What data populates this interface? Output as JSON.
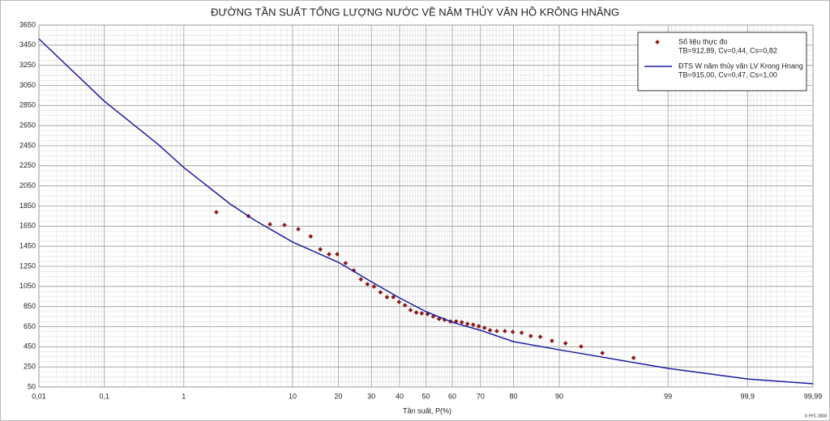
{
  "chart_data": {
    "type": "line",
    "title": "ĐƯỜNG TẦN SUẤT TỔNG LƯỢNG NƯỚC VỀ NĂM THỦY VĂN HỒ KRÔNG HNĂNG",
    "x_label": "Tần suất, P(%)",
    "footer": "© FFC 2008",
    "x_scale": "probability",
    "grid": true,
    "legend_position": "upper right",
    "xlim": [
      0.01,
      99.99
    ],
    "ylim": [
      50,
      3650
    ],
    "xticks": [
      {
        "value": 0.01,
        "label": "0,01"
      },
      {
        "value": 0.1,
        "label": "0,1"
      },
      1,
      10,
      20,
      30,
      40,
      50,
      60,
      70,
      80,
      90,
      99,
      {
        "value": 99.9,
        "label": "99,9"
      },
      {
        "value": 99.99,
        "label": "99,99"
      }
    ],
    "yticks": [
      50,
      250,
      450,
      650,
      850,
      1050,
      1250,
      1450,
      1650,
      1850,
      2050,
      2250,
      2450,
      2650,
      2850,
      3050,
      3250,
      3450,
      3650
    ],
    "series": [
      {
        "name": "Số liệu thực đo",
        "stats": "TB=912,89, Cv=0,44, Cs=0,82",
        "type": "scatter",
        "color": "#8b1a1a",
        "x": [
          2.2,
          4.4,
          6.7,
          8.7,
          11.0,
          13.4,
          15.5,
          17.6,
          19.7,
          22.0,
          24.4,
          26.6,
          28.7,
          30.9,
          33.1,
          35.4,
          37.7,
          39.8,
          42.0,
          44.1,
          46.3,
          48.4,
          50.6,
          52.8,
          55.0,
          57.1,
          59.3,
          61.4,
          63.5,
          65.5,
          67.5,
          69.4,
          71.3,
          73.1,
          75.2,
          77.6,
          79.8,
          82.1,
          84.3,
          86.4,
          88.7,
          91.0,
          93.2,
          95.5,
          97.7
        ],
        "values": [
          1789,
          1750,
          1669,
          1661,
          1620,
          1548,
          1419,
          1371,
          1371,
          1282,
          1210,
          1121,
          1073,
          1049,
          992,
          944,
          944,
          896,
          863,
          815,
          791,
          783,
          775,
          751,
          727,
          718,
          702,
          702,
          694,
          678,
          670,
          654,
          638,
          614,
          606,
          606,
          598,
          590,
          557,
          549,
          509,
          485,
          453,
          388,
          340
        ]
      },
      {
        "name": "ĐTS W năm thủy văn LV Krong Hnang",
        "stats": "TB=915,00, Cv=0,47, Cs=1,00",
        "type": "line",
        "color": "#1c1ca0",
        "x": [
          0.01,
          0.1,
          0.5,
          1,
          3,
          5,
          10,
          20,
          30,
          40,
          50,
          60,
          70,
          80,
          90,
          99,
          99.9,
          99.99
        ],
        "values": [
          3513,
          2893,
          2466,
          2233,
          1870,
          1709,
          1492,
          1290,
          1097,
          936,
          800,
          694,
          614,
          501,
          420,
          235,
          130,
          82
        ]
      }
    ]
  }
}
